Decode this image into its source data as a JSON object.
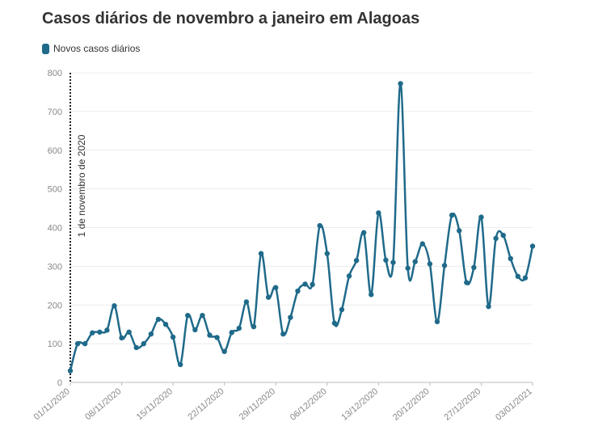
{
  "chart_data": {
    "type": "line",
    "title": "Casos diários de novembro a janeiro em Alagoas",
    "legend": {
      "placement": "top-left",
      "entries": [
        "Novos casos diários"
      ]
    },
    "series_color": "#1f6a8a",
    "grid": true,
    "ylim": [
      0,
      800
    ],
    "y_ticks": [
      0,
      100,
      200,
      300,
      400,
      500,
      600,
      700,
      800
    ],
    "x_tick_labels": [
      "01/11/2020",
      "08/11/2020",
      "15/11/2020",
      "22/11/2020",
      "29/11/2020",
      "06/12/2020",
      "13/12/2020",
      "20/12/2020",
      "27/12/2020",
      "03/01/2021"
    ],
    "annotation": {
      "x": "01/11/2020",
      "text": "1 de novembro de 2020"
    },
    "series": [
      {
        "name": "Novos casos diários",
        "x": [
          "01/11/2020",
          "02/11/2020",
          "03/11/2020",
          "04/11/2020",
          "05/11/2020",
          "06/11/2020",
          "07/11/2020",
          "08/11/2020",
          "09/11/2020",
          "10/11/2020",
          "11/11/2020",
          "12/11/2020",
          "13/11/2020",
          "14/11/2020",
          "15/11/2020",
          "16/11/2020",
          "17/11/2020",
          "18/11/2020",
          "19/11/2020",
          "20/11/2020",
          "21/11/2020",
          "22/11/2020",
          "23/11/2020",
          "24/11/2020",
          "25/11/2020",
          "26/11/2020",
          "27/11/2020",
          "28/11/2020",
          "29/11/2020",
          "30/11/2020",
          "01/12/2020",
          "02/12/2020",
          "03/12/2020",
          "04/12/2020",
          "05/12/2020",
          "06/12/2020",
          "07/12/2020",
          "08/12/2020",
          "09/12/2020",
          "10/12/2020",
          "11/12/2020",
          "12/12/2020",
          "13/12/2020",
          "14/12/2020",
          "15/12/2020",
          "16/12/2020",
          "17/12/2020",
          "18/12/2020",
          "19/12/2020",
          "20/12/2020",
          "21/12/2020",
          "22/12/2020",
          "23/12/2020",
          "24/12/2020",
          "25/12/2020",
          "26/12/2020",
          "27/12/2020",
          "28/12/2020",
          "29/12/2020",
          "30/12/2020",
          "31/12/2020",
          "01/01/2021",
          "02/01/2021",
          "03/01/2021"
        ],
        "values": [
          30,
          100,
          100,
          128,
          130,
          135,
          198,
          115,
          130,
          90,
          100,
          125,
          163,
          150,
          117,
          46,
          173,
          136,
          173,
          122,
          116,
          80,
          129,
          140,
          208,
          144,
          333,
          220,
          245,
          125,
          168,
          236,
          254,
          253,
          405,
          333,
          153,
          188,
          275,
          315,
          387,
          227,
          438,
          316,
          310,
          772,
          295,
          312,
          358,
          306,
          157,
          302,
          432,
          392,
          258,
          297,
          427,
          196,
          372,
          380,
          320,
          274,
          270,
          352
        ]
      }
    ]
  }
}
